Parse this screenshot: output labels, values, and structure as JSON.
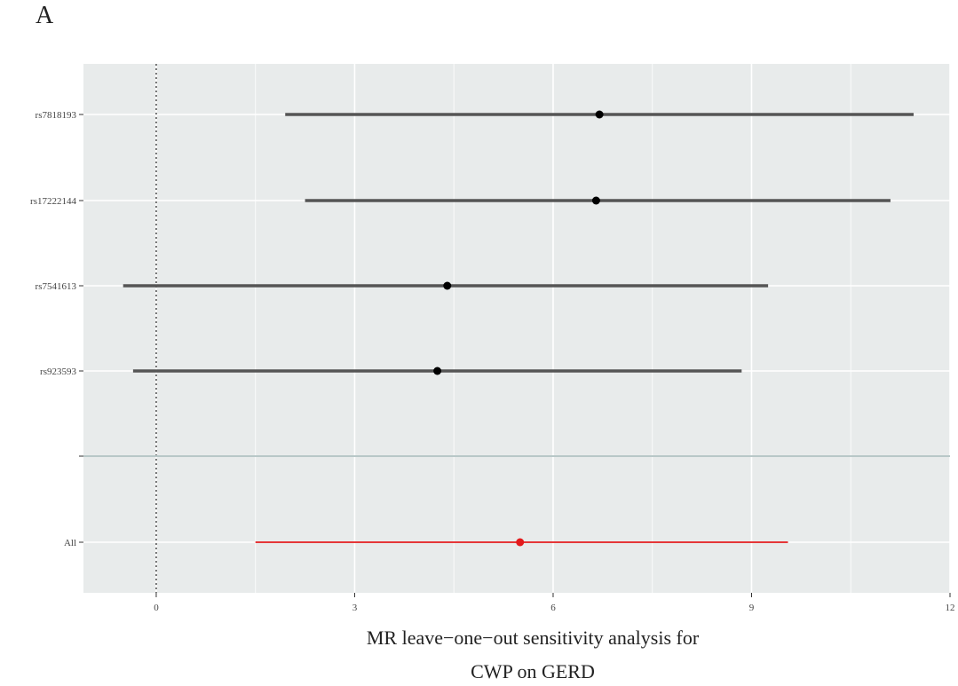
{
  "panel_label": "A",
  "chart_data": {
    "type": "forest",
    "xlabel_lines": [
      "MR leave−one−out sensitivity analysis for",
      "CWP on GERD"
    ],
    "ylabel": "",
    "xlim": [
      -1.1,
      12
    ],
    "x_ticks": [
      0,
      3,
      6,
      9,
      12
    ],
    "reference_line": 0,
    "grid": true,
    "rows": [
      {
        "label": "rs7818193",
        "estimate": 6.7,
        "lower": 1.95,
        "upper": 11.45,
        "color": "#000000"
      },
      {
        "label": "rs17222144",
        "estimate": 6.65,
        "lower": 2.25,
        "upper": 11.1,
        "color": "#000000"
      },
      {
        "label": "rs7541613",
        "estimate": 4.4,
        "lower": -0.5,
        "upper": 9.25,
        "color": "#000000"
      },
      {
        "label": "rs923593",
        "estimate": 4.25,
        "lower": -0.35,
        "upper": 8.85,
        "color": "#000000"
      },
      {
        "label": "",
        "separator": true
      },
      {
        "label": "All",
        "estimate": 5.5,
        "lower": 1.5,
        "upper": 9.55,
        "color": "#e31a1c"
      }
    ],
    "colors": {
      "panel": "#e8ebeb",
      "grid": "#ffffff",
      "ci_line": "#555555",
      "summary": "#e31a1c"
    }
  }
}
